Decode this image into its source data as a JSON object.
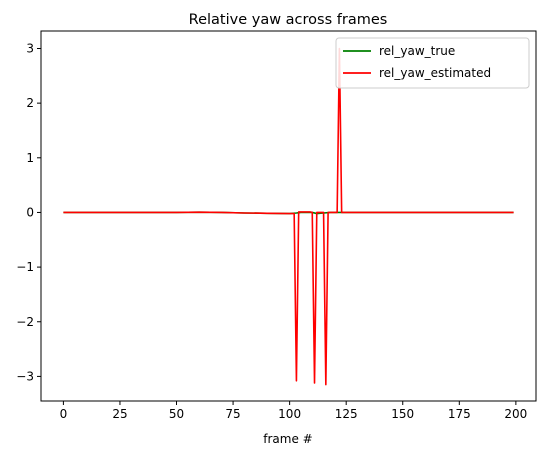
{
  "chart_data": {
    "type": "line",
    "title": "Relative yaw across frames",
    "xlabel": "frame #",
    "ylabel": "",
    "xlim": [
      -9.9,
      208.9
    ],
    "ylim": [
      -3.45,
      3.32
    ],
    "xticks": [
      0,
      25,
      50,
      75,
      100,
      125,
      150,
      175,
      200
    ],
    "yticks": [
      -3,
      -2,
      -1,
      0,
      1,
      2,
      3
    ],
    "grid": false,
    "legend_position": "top-right",
    "series": [
      {
        "name": "rel_yaw_true",
        "color": "#008000",
        "x": [
          0,
          25,
          50,
          60,
          70,
          80,
          90,
          100,
          103,
          105,
          110,
          112,
          115,
          118,
          122,
          125,
          140,
          160,
          180,
          199
        ],
        "y": [
          0.0,
          0.0,
          0.0,
          0.005,
          0.0,
          -0.01,
          -0.015,
          -0.02,
          -0.01,
          0.0,
          0.0,
          -0.02,
          -0.01,
          0.0,
          0.0,
          0.0,
          0.0,
          0.0,
          0.0,
          0.0
        ]
      },
      {
        "name": "rel_yaw_estimated",
        "color": "#ff0000",
        "x": [
          0,
          25,
          50,
          60,
          70,
          80,
          90,
          100,
          102,
          103,
          104,
          105,
          106,
          107,
          108,
          109,
          110,
          111,
          112,
          113,
          114,
          115,
          116,
          117,
          118,
          119,
          120,
          121,
          122,
          123,
          124,
          125,
          140,
          160,
          180,
          199
        ],
        "y": [
          0.0,
          0.0,
          0.0,
          0.005,
          0.0,
          -0.01,
          -0.015,
          -0.02,
          -0.02,
          -3.08,
          0.01,
          0.01,
          0.01,
          0.01,
          0.01,
          0.01,
          0.0,
          -3.12,
          0.0,
          0.0,
          0.0,
          0.0,
          -3.15,
          0.0,
          0.0,
          0.0,
          0.0,
          0.0,
          3.0,
          0.0,
          0.0,
          0.0,
          0.0,
          0.0,
          0.0,
          0.0
        ]
      }
    ]
  }
}
